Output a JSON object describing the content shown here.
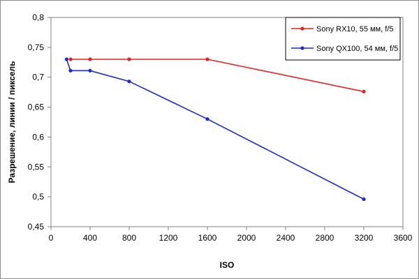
{
  "chart_data": {
    "type": "line",
    "xlabel": "ISO",
    "ylabel": "Разрешение, линии / пиксель",
    "xlim": [
      0,
      3600
    ],
    "ylim": [
      0.45,
      0.8
    ],
    "xticks": [
      0,
      400,
      800,
      1200,
      1600,
      2000,
      2400,
      2800,
      3200,
      3600
    ],
    "yticks": [
      0.45,
      0.5,
      0.55,
      0.6,
      0.65,
      0.7,
      0.75,
      0.8
    ],
    "xtick_labels": [
      "0",
      "400",
      "800",
      "1200",
      "1600",
      "2000",
      "2400",
      "2800",
      "3200",
      "3600"
    ],
    "ytick_labels": [
      "0,45",
      "0,5",
      "0,55",
      "0,6",
      "0,65",
      "0,7",
      "0,75",
      "0,8"
    ],
    "grid": false,
    "legend_position": "top-right",
    "series": [
      {
        "name": "Sony RX10, 55 мм, f/5",
        "color": "#e8201f",
        "x": [
          200,
          400,
          800,
          1600,
          3200
        ],
        "y": [
          0.73,
          0.73,
          0.73,
          0.73,
          0.676
        ]
      },
      {
        "name": "Sony QX100, 54 мм, f/5",
        "color": "#1a2ad6",
        "x": [
          160,
          200,
          400,
          800,
          1600,
          3200
        ],
        "y": [
          0.73,
          0.711,
          0.711,
          0.693,
          0.63,
          0.496
        ]
      }
    ]
  }
}
